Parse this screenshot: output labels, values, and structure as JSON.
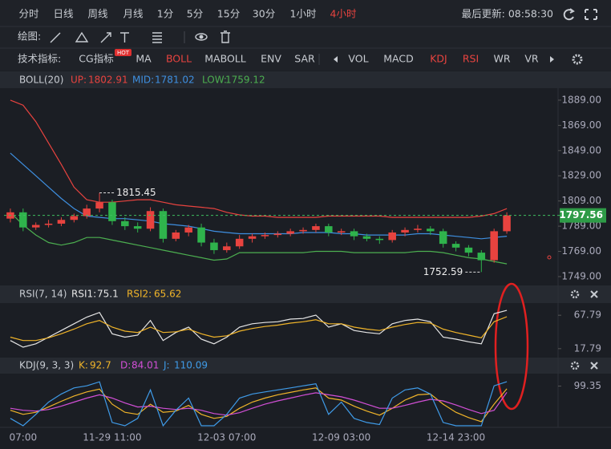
{
  "toolbar": {
    "periods": [
      "分时",
      "日线",
      "周线",
      "月线",
      "1分",
      "5分",
      "15分",
      "30分",
      "1小时",
      "4小时"
    ],
    "active_period": 9,
    "last_update": "最后更新: 08:58:30"
  },
  "drawing": {
    "label": "绘图:"
  },
  "indicators": {
    "label": "技术指标:",
    "main": [
      "CG指标",
      "MA",
      "BOLL",
      "MABOLL",
      "ENV",
      "SAR"
    ],
    "hot_badge": "HOT",
    "active_main": [
      2
    ],
    "sub": [
      "VOL",
      "MACD",
      "KDJ",
      "RSI",
      "WR",
      "VR"
    ],
    "active_sub": [
      2,
      3
    ]
  },
  "chart_data": [
    {
      "type": "candlestick",
      "title": "BOLL(20)",
      "categories": [
        null,
        "07:00",
        null,
        null,
        null,
        null,
        null,
        null,
        "11-29 11:00",
        null,
        null,
        null,
        null,
        null,
        null,
        null,
        null,
        "12-03 07:00",
        null,
        null,
        null,
        null,
        null,
        null,
        null,
        null,
        "12-09 03:00",
        null,
        null,
        null,
        null,
        null,
        null,
        null,
        null,
        "12-14 23:00",
        null,
        null,
        null,
        null
      ],
      "open": [
        1795,
        1800,
        1788,
        1790,
        1791,
        1794,
        1797,
        1803,
        1808,
        1793,
        1789,
        1787,
        1801,
        1779,
        1784,
        1788,
        1776,
        1770,
        1773,
        1779,
        1781,
        1782,
        1783,
        1785,
        1786,
        1789,
        1784,
        1785,
        1781,
        1779,
        1778,
        1784,
        1786,
        1787,
        1785,
        1775,
        1772,
        1768,
        1762,
        1785
      ],
      "high": [
        1803,
        1803,
        1792,
        1794,
        1796,
        1799,
        1806,
        1815.45,
        1810,
        1796,
        1792,
        1804,
        1803,
        1786,
        1790,
        1791,
        1779,
        1776,
        1782,
        1783,
        1784,
        1785,
        1787,
        1788,
        1791,
        1791,
        1787,
        1787,
        1783,
        1781,
        1786,
        1788,
        1790,
        1789,
        1787,
        1777,
        1774,
        1770,
        1787,
        1800
      ],
      "low": [
        1792,
        1785,
        1786,
        1788,
        1789,
        1792,
        1795,
        1800,
        1790,
        1786,
        1784,
        1785,
        1776,
        1777,
        1781,
        1773,
        1767,
        1768,
        1771,
        1776,
        1779,
        1780,
        1781,
        1783,
        1784,
        1781,
        1782,
        1778,
        1777,
        1775,
        1776,
        1781,
        1784,
        1782,
        1772,
        1769,
        1765,
        1752.59,
        1760,
        1783
      ],
      "close": [
        1800,
        1788,
        1790,
        1791,
        1794,
        1797,
        1803,
        1808,
        1793,
        1789,
        1787,
        1801,
        1779,
        1784,
        1788,
        1776,
        1770,
        1773,
        1779,
        1781,
        1782,
        1783,
        1785,
        1786,
        1789,
        1784,
        1785,
        1781,
        1779,
        1778,
        1784,
        1786,
        1787,
        1785,
        1775,
        1772,
        1768,
        1762,
        1785,
        1797.56
      ],
      "up_color": "#e8433f",
      "down_color": "#2fb34c",
      "series": [
        {
          "name": "UP:",
          "color": "#e8433f",
          "values": [
            1889,
            1885,
            1872,
            1855,
            1838,
            1820,
            1810,
            1808,
            1808,
            1809,
            1810,
            1810,
            1808,
            1806,
            1805,
            1804,
            1803,
            1800,
            1798,
            1797,
            1797,
            1796,
            1796,
            1796,
            1796,
            1797,
            1797,
            1797,
            1797,
            1797,
            1796,
            1796,
            1796,
            1796,
            1796,
            1796,
            1796,
            1797,
            1799,
            1802.91
          ]
        },
        {
          "name": "MID:",
          "color": "#3e8fe0",
          "values": [
            1847,
            1838,
            1829,
            1820,
            1811,
            1803,
            1797,
            1796,
            1795,
            1795,
            1794,
            1793,
            1791,
            1790,
            1789,
            1787,
            1785,
            1784,
            1783,
            1783,
            1783,
            1783,
            1783,
            1784,
            1784,
            1784,
            1783,
            1783,
            1782,
            1782,
            1782,
            1782,
            1783,
            1783,
            1782,
            1781,
            1780,
            1779,
            1780,
            1781.02
          ]
        },
        {
          "name": "LOW:",
          "color": "#4caf50",
          "values": [
            1800,
            1790,
            1782,
            1776,
            1774,
            1776,
            1780,
            1780,
            1778,
            1776,
            1774,
            1772,
            1770,
            1768,
            1766,
            1764,
            1762,
            1763,
            1768,
            1768,
            1768,
            1768,
            1768,
            1768,
            1769,
            1769,
            1769,
            1768,
            1768,
            1768,
            1768,
            1768,
            1769,
            1769,
            1768,
            1766,
            1764,
            1763,
            1761,
            1759.12
          ]
        }
      ],
      "ylim": [
        1745.8,
        1898.5
      ],
      "yticks": [
        {
          "value": 1889,
          "label": "1889.00"
        },
        {
          "value": 1869,
          "label": "1869.00"
        },
        {
          "value": 1849,
          "label": "1849.00"
        },
        {
          "value": 1829,
          "label": "1829.00"
        },
        {
          "value": 1809,
          "label": "1809.00"
        },
        {
          "value": 1789,
          "label": "1789.00"
        },
        {
          "value": 1769,
          "label": "1769.00"
        },
        {
          "value": 1749,
          "label": "1749.00"
        }
      ]
    },
    {
      "type": "line",
      "title": "RSI(7, 14)",
      "series": [
        {
          "name": "RSI1:",
          "color": "#e6e6e6",
          "values": [
            30,
            20,
            25,
            35,
            45,
            55,
            65,
            72,
            40,
            35,
            38,
            60,
            30,
            42,
            50,
            32,
            25,
            35,
            50,
            55,
            57,
            58,
            62,
            63,
            68,
            50,
            55,
            45,
            42,
            40,
            55,
            60,
            62,
            58,
            35,
            32,
            28,
            25,
            70,
            75.1
          ]
        },
        {
          "name": "RSI2:",
          "color": "#f0b429",
          "values": [
            35,
            30,
            30,
            34,
            40,
            47,
            55,
            60,
            50,
            44,
            42,
            50,
            42,
            43,
            47,
            40,
            35,
            37,
            44,
            48,
            51,
            53,
            56,
            58,
            61,
            55,
            55,
            50,
            47,
            45,
            50,
            54,
            57,
            56,
            47,
            42,
            38,
            34,
            58,
            65.62
          ]
        }
      ],
      "ylim": [
        2,
        86
      ],
      "yticks": [
        67.79,
        17.79
      ]
    },
    {
      "type": "line",
      "title": "KDJ(9, 3, 3)",
      "series": [
        {
          "name": "K:",
          "color": "#f0b429",
          "values": [
            40,
            30,
            35,
            48,
            62,
            75,
            85,
            92,
            55,
            35,
            30,
            55,
            35,
            38,
            52,
            30,
            20,
            25,
            45,
            60,
            70,
            78,
            84,
            90,
            95,
            70,
            65,
            50,
            38,
            28,
            45,
            65,
            78,
            80,
            55,
            35,
            22,
            12,
            55,
            92.7
          ]
        },
        {
          "name": "D:",
          "color": "#d24fd6",
          "values": [
            45,
            40,
            38,
            42,
            50,
            60,
            70,
            78,
            70,
            58,
            48,
            50,
            45,
            42,
            45,
            40,
            32,
            28,
            34,
            45,
            55,
            63,
            70,
            77,
            83,
            78,
            73,
            65,
            55,
            45,
            45,
            52,
            60,
            67,
            63,
            53,
            42,
            32,
            40,
            84.01
          ]
        },
        {
          "name": "J:",
          "color": "#3f9be8",
          "values": [
            20,
            2,
            30,
            60,
            80,
            95,
            100,
            110,
            10,
            2,
            20,
            90,
            2,
            40,
            70,
            2,
            2,
            30,
            70,
            80,
            85,
            90,
            95,
            100,
            105,
            30,
            60,
            20,
            10,
            5,
            70,
            90,
            95,
            80,
            10,
            2,
            2,
            2,
            100,
            110.09
          ]
        }
      ],
      "ylim": [
        0,
        130
      ],
      "yticks": [
        99.35
      ]
    }
  ]
}
